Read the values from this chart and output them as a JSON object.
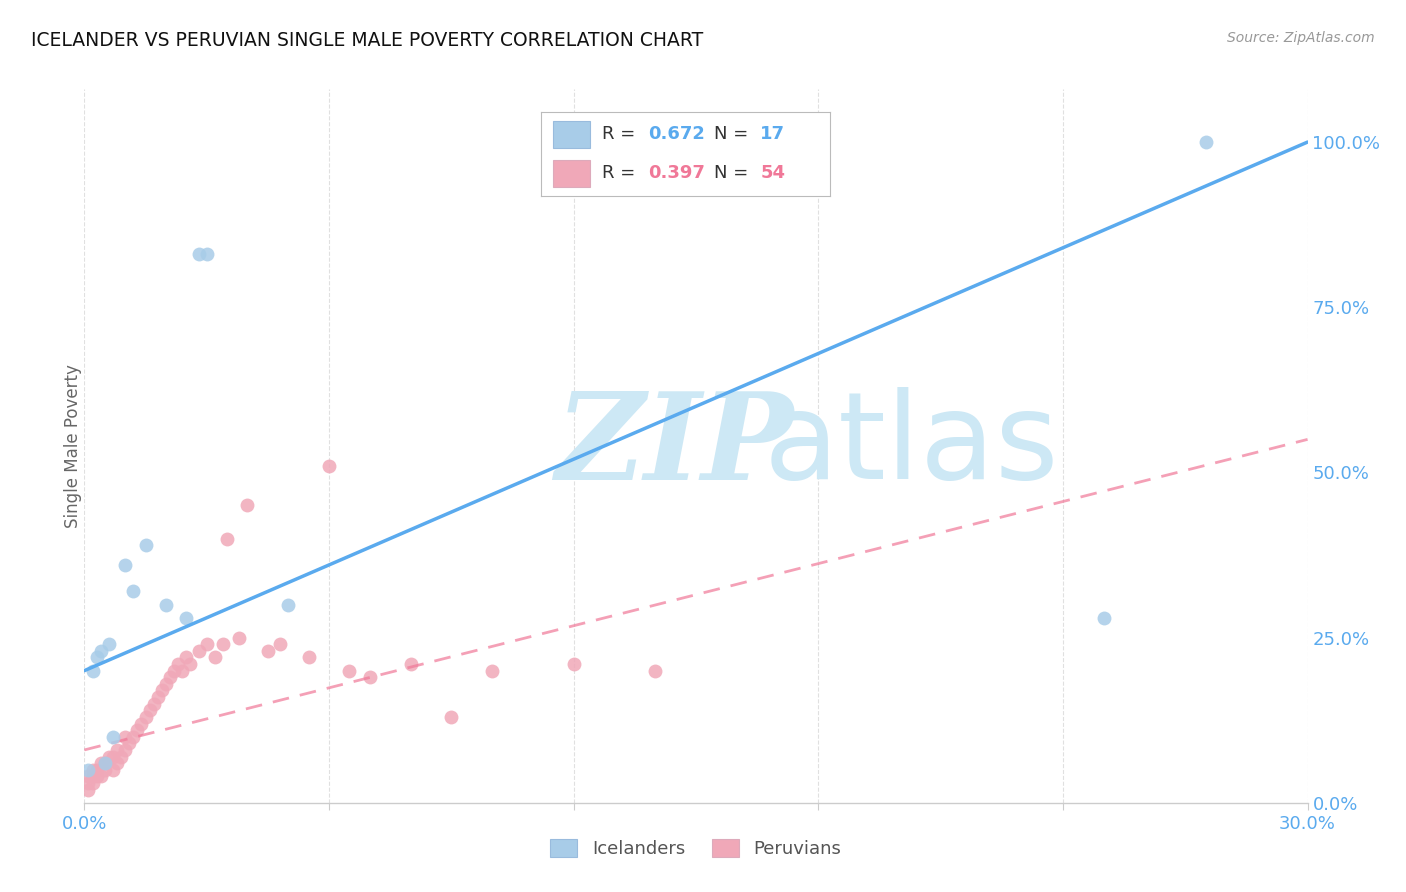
{
  "title": "ICELANDER VS PERUVIAN SINGLE MALE POVERTY CORRELATION CHART",
  "source": "Source: ZipAtlas.com",
  "ylabel": "Single Male Poverty",
  "right_yticks": [
    "0.0%",
    "25.0%",
    "50.0%",
    "75.0%",
    "100.0%"
  ],
  "right_ytick_vals": [
    0.0,
    0.25,
    0.5,
    0.75,
    1.0
  ],
  "xlim": [
    0.0,
    0.3
  ],
  "ylim": [
    0.0,
    1.08
  ],
  "legend_r1": "0.672",
  "legend_n1": "17",
  "legend_r2": "0.397",
  "legend_n2": "54",
  "legend_label1": "Icelanders",
  "legend_label2": "Peruvians",
  "icelander_color": "#a8cce8",
  "peruvian_color": "#f0a8b8",
  "icelander_line_color": "#5aaaee",
  "peruvian_line_color": "#f07898",
  "icelander_x": [
    0.001,
    0.002,
    0.003,
    0.004,
    0.005,
    0.006,
    0.007,
    0.01,
    0.012,
    0.015,
    0.02,
    0.025,
    0.028,
    0.03,
    0.05,
    0.25,
    0.275
  ],
  "icelander_y": [
    0.05,
    0.2,
    0.22,
    0.23,
    0.06,
    0.24,
    0.1,
    0.36,
    0.32,
    0.39,
    0.3,
    0.28,
    0.83,
    0.83,
    0.3,
    0.28,
    1.0
  ],
  "peruvian_x": [
    0.001,
    0.001,
    0.001,
    0.002,
    0.002,
    0.002,
    0.003,
    0.003,
    0.004,
    0.004,
    0.005,
    0.005,
    0.006,
    0.007,
    0.007,
    0.008,
    0.008,
    0.009,
    0.01,
    0.01,
    0.011,
    0.012,
    0.013,
    0.014,
    0.015,
    0.016,
    0.017,
    0.018,
    0.019,
    0.02,
    0.021,
    0.022,
    0.023,
    0.024,
    0.025,
    0.026,
    0.028,
    0.03,
    0.032,
    0.034,
    0.035,
    0.038,
    0.04,
    0.045,
    0.048,
    0.055,
    0.06,
    0.065,
    0.07,
    0.08,
    0.09,
    0.1,
    0.12,
    0.14
  ],
  "peruvian_y": [
    0.02,
    0.03,
    0.04,
    0.03,
    0.04,
    0.05,
    0.04,
    0.05,
    0.04,
    0.06,
    0.05,
    0.06,
    0.07,
    0.05,
    0.07,
    0.06,
    0.08,
    0.07,
    0.08,
    0.1,
    0.09,
    0.1,
    0.11,
    0.12,
    0.13,
    0.14,
    0.15,
    0.16,
    0.17,
    0.18,
    0.19,
    0.2,
    0.21,
    0.2,
    0.22,
    0.21,
    0.23,
    0.24,
    0.22,
    0.24,
    0.4,
    0.25,
    0.45,
    0.23,
    0.24,
    0.22,
    0.51,
    0.2,
    0.19,
    0.21,
    0.13,
    0.2,
    0.21,
    0.2
  ],
  "icelander_line_x0": 0.0,
  "icelander_line_y0": 0.2,
  "icelander_line_x1": 0.3,
  "icelander_line_y1": 1.0,
  "peruvian_line_x0": 0.0,
  "peruvian_line_y0": 0.08,
  "peruvian_line_x1": 0.3,
  "peruvian_line_y1": 0.55,
  "watermark_zip": "ZIP",
  "watermark_atlas": "atlas",
  "watermark_color": "#cde8f5",
  "background_color": "#ffffff",
  "grid_color": "#dddddd"
}
